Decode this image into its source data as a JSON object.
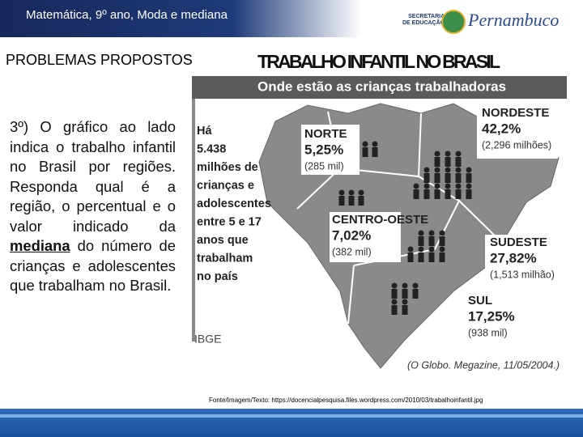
{
  "header": {
    "title": "Matemática, 9º ano, Moda e mediana",
    "logo_line1": "SECRETARIA",
    "logo_line2": "DE EDUCAÇÃO",
    "logo_name": "Pernambuco"
  },
  "section_title": "PROBLEMAS PROPOSTOS",
  "question": {
    "before": "3º) O gráfico ao lado indica o trabalho infantil no Brasil por regiões. Responda qual é a região, o percentual e o valor indicado da ",
    "emphasis": "mediana",
    "after": " do número de crianças e adolescentes que trabalham no Brasil."
  },
  "infographic": {
    "title": "TRABALHO INFANTIL NO BRASIL",
    "subtitle": "Onde estão as crianças trabalhadoras",
    "summary_lines": [
      "Há",
      "5.438",
      "milhões de",
      "crianças e",
      "adolescentes",
      "entre 5 e 17",
      "anos que",
      "trabalham",
      "no país"
    ],
    "regions": [
      {
        "name": "NORTE",
        "percent": "5,25%",
        "count": "(285 mil)"
      },
      {
        "name": "NORDESTE",
        "percent": "42,2%",
        "count": "(2,296 milhões)"
      },
      {
        "name": "CENTRO-OESTE",
        "percent": "7,02%",
        "count": "(382 mil)"
      },
      {
        "name": "SUDESTE",
        "percent": "27,82%",
        "count": "(1,513 milhão)"
      },
      {
        "name": "SUL",
        "percent": "17,25%",
        "count": "(938 mil)"
      }
    ],
    "source_label": "IBGE",
    "citation": "(O Globo. Megazine, 11/05/2004.)"
  },
  "footer": {
    "source": "Fonte/Imagem/Texto: https://docencialpesquisa.files.wordpress.com/2010/03/trabalhoinfantil.jpg"
  }
}
